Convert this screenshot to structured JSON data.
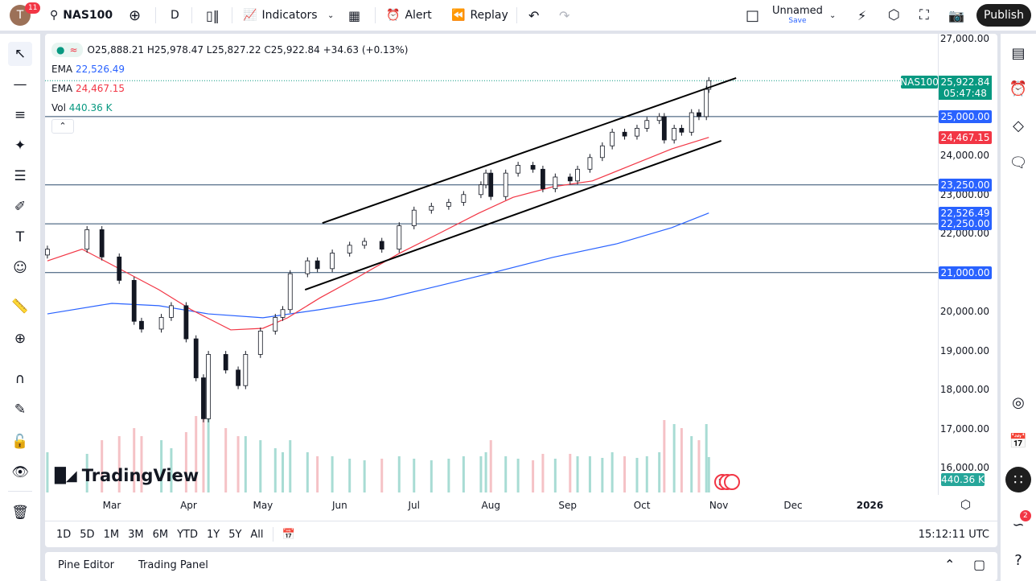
{
  "header": {
    "avatar_letter": "T",
    "notifications": "11",
    "symbol": "NAS100",
    "interval": "D",
    "indicators_label": "Indicators",
    "alert_label": "Alert",
    "replay_label": "Replay",
    "layout_name": "Unnamed",
    "save_label": "Save",
    "publish_label": "Publish"
  },
  "legend": {
    "ohlc": "O25,888.21 H25,978.47 L25,827.22 C25,922.84 +34.63 (+0.13%)",
    "ema1_label": "EMA",
    "ema1_value": "22,526.49",
    "ema2_label": "EMA",
    "ema2_value": "24,467.15",
    "vol_label": "Vol",
    "vol_value": "440.36 K"
  },
  "price_axis": {
    "ticks": [
      "27,000.00",
      "24,000.00",
      "23,000.00",
      "22,000.00",
      "20,000.00",
      "19,000.00",
      "18,000.00",
      "17,000.00",
      "16,000.00"
    ],
    "tick_values": [
      27000,
      24000,
      23000,
      22000,
      20000,
      19000,
      18000,
      17000,
      16000
    ],
    "symbol_badge": "NAS100",
    "last_price": "25,922.84",
    "countdown": "05:47:48",
    "level_badges": [
      {
        "label": "25,000.00",
        "value": 25000
      },
      {
        "label": "23,250.00",
        "value": 23250
      },
      {
        "label": "22,250.00",
        "value": 22250
      },
      {
        "label": "21,000.00",
        "value": 21000
      }
    ],
    "ema_badges": [
      {
        "label": "24,467.15",
        "value": 24467.15,
        "color": "#f23645"
      },
      {
        "label": "22,526.49",
        "value": 22526.49,
        "color": "#2962ff"
      }
    ],
    "volume_badge": "440.36 K"
  },
  "time_axis": {
    "labels": [
      "Mar",
      "Apr",
      "May",
      "Jun",
      "Jul",
      "Aug",
      "Sep",
      "Oct",
      "Nov",
      "Dec",
      "2026"
    ],
    "label_dates": [
      "2025-03-01",
      "2025-04-01",
      "2025-05-01",
      "2025-06-01",
      "2025-07-01",
      "2025-08-01",
      "2025-09-01",
      "2025-10-01",
      "2025-11-01",
      "2025-12-01",
      "2026-01-01"
    ]
  },
  "range_buttons": [
    "1D",
    "5D",
    "1M",
    "3M",
    "6M",
    "YTD",
    "1Y",
    "5Y",
    "All"
  ],
  "clock": "15:12:11 UTC",
  "bottom_tabs": [
    "Pine Editor",
    "Trading Panel"
  ],
  "watermark": "TradingView",
  "right_notifications": "2",
  "colors": {
    "up": "#089981",
    "down": "#f23645",
    "ema_fast": "#f23645",
    "ema_slow": "#2962ff",
    "level": "#2a4a6b",
    "level_badge": "#2962ff"
  },
  "chart_data": {
    "type": "candlestick",
    "ylim": [
      16000,
      27000
    ],
    "closes": [
      [
        "2025-02-03",
        21600,
        500
      ],
      [
        "2025-02-19",
        22100,
        480
      ],
      [
        "2025-02-25",
        21400,
        650
      ],
      [
        "2025-03-04",
        20800,
        700
      ],
      [
        "2025-03-10",
        19750,
        800
      ],
      [
        "2025-03-13",
        19550,
        700
      ],
      [
        "2025-03-21",
        19850,
        650
      ],
      [
        "2025-03-25",
        20150,
        550
      ],
      [
        "2025-03-31",
        19300,
        750
      ],
      [
        "2025-04-04",
        18300,
        950
      ],
      [
        "2025-04-07",
        17250,
        1000
      ],
      [
        "2025-04-09",
        18900,
        1000
      ],
      [
        "2025-04-16",
        18500,
        800
      ],
      [
        "2025-04-21",
        18100,
        700
      ],
      [
        "2025-04-24",
        18900,
        700
      ],
      [
        "2025-04-30",
        19500,
        650
      ],
      [
        "2025-05-06",
        19850,
        550
      ],
      [
        "2025-05-09",
        20050,
        500
      ],
      [
        "2025-05-12",
        20970,
        650
      ],
      [
        "2025-05-19",
        21300,
        500
      ],
      [
        "2025-05-23",
        21100,
        450
      ],
      [
        "2025-05-29",
        21500,
        450
      ],
      [
        "2025-06-05",
        21700,
        420
      ],
      [
        "2025-06-11",
        21800,
        400
      ],
      [
        "2025-06-18",
        21600,
        420
      ],
      [
        "2025-06-25",
        22200,
        450
      ],
      [
        "2025-07-01",
        22600,
        420
      ],
      [
        "2025-07-08",
        22700,
        400
      ],
      [
        "2025-07-15",
        22800,
        420
      ],
      [
        "2025-07-21",
        23000,
        450
      ],
      [
        "2025-07-28",
        23250,
        450
      ],
      [
        "2025-07-30",
        23550,
        500
      ],
      [
        "2025-08-01",
        22950,
        650
      ],
      [
        "2025-08-07",
        23550,
        450
      ],
      [
        "2025-08-12",
        23750,
        420
      ],
      [
        "2025-08-18",
        23650,
        400
      ],
      [
        "2025-08-22",
        23150,
        480
      ],
      [
        "2025-08-27",
        23450,
        420
      ],
      [
        "2025-09-02",
        23350,
        480
      ],
      [
        "2025-09-05",
        23650,
        450
      ],
      [
        "2025-09-10",
        23950,
        450
      ],
      [
        "2025-09-15",
        24250,
        430
      ],
      [
        "2025-09-19",
        24600,
        500
      ],
      [
        "2025-09-24",
        24500,
        450
      ],
      [
        "2025-09-29",
        24700,
        430
      ],
      [
        "2025-10-03",
        24900,
        450
      ],
      [
        "2025-10-08",
        25000,
        500
      ],
      [
        "2025-10-10",
        24400,
        900
      ],
      [
        "2025-10-14",
        24700,
        850
      ],
      [
        "2025-10-17",
        24600,
        800
      ],
      [
        "2025-10-21",
        25100,
        700
      ],
      [
        "2025-10-24",
        25000,
        650
      ],
      [
        "2025-10-27",
        25700,
        850
      ],
      [
        "2025-10-28",
        25922.84,
        440.36
      ]
    ],
    "ema_fast": [
      [
        "2025-02-03",
        21300
      ],
      [
        "2025-02-17",
        21600
      ],
      [
        "2025-03-01",
        21200
      ],
      [
        "2025-03-20",
        20560
      ],
      [
        "2025-04-02",
        20050
      ],
      [
        "2025-04-18",
        19530
      ],
      [
        "2025-05-01",
        19570
      ],
      [
        "2025-05-11",
        19840
      ],
      [
        "2025-05-24",
        20350
      ],
      [
        "2025-06-08",
        20870
      ],
      [
        "2025-06-25",
        21490
      ],
      [
        "2025-07-11",
        22000
      ],
      [
        "2025-07-27",
        22520
      ],
      [
        "2025-08-10",
        22930
      ],
      [
        "2025-08-26",
        23200
      ],
      [
        "2025-09-11",
        23350
      ],
      [
        "2025-09-27",
        23760
      ],
      [
        "2025-10-13",
        24170
      ],
      [
        "2025-10-28",
        24467.15
      ]
    ],
    "ema_slow": [
      [
        "2025-02-03",
        19940
      ],
      [
        "2025-03-01",
        20210
      ],
      [
        "2025-03-20",
        20150
      ],
      [
        "2025-04-09",
        19940
      ],
      [
        "2025-05-01",
        19840
      ],
      [
        "2025-05-24",
        20050
      ],
      [
        "2025-06-18",
        20310
      ],
      [
        "2025-07-11",
        20660
      ],
      [
        "2025-07-31",
        20970
      ],
      [
        "2025-08-26",
        21390
      ],
      [
        "2025-09-21",
        21740
      ],
      [
        "2025-10-13",
        22150
      ],
      [
        "2025-10-28",
        22526.49
      ]
    ],
    "trendlines": [
      [
        [
          "2025-05-25",
          22270
        ],
        [
          "2025-11-08",
          25990
        ]
      ],
      [
        [
          "2025-05-18",
          20560
        ],
        [
          "2025-11-02",
          24380
        ]
      ]
    ],
    "horizontal_levels": [
      25000,
      23250,
      22250,
      21000
    ]
  }
}
